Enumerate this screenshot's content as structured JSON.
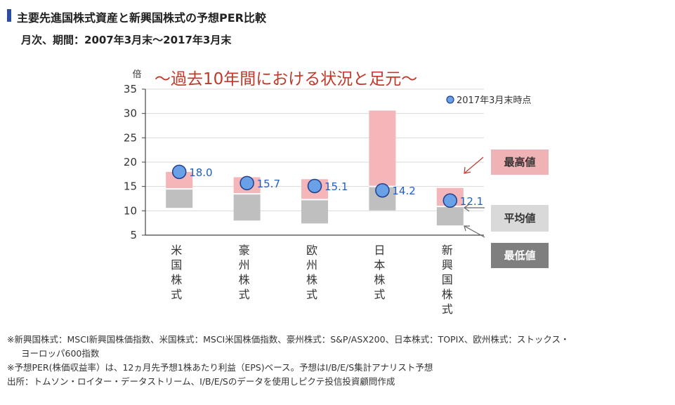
{
  "header": {
    "title": "主要先進国株式資産と新興国株式の予想PER比較",
    "subtitle": "月次、期間：2007年3月末～2017年3月末"
  },
  "colors": {
    "title_bar": "#2b4ea2",
    "high_range": "#f4b6b8",
    "avg_range": "#bfbfbf",
    "marker_fill": "#6aa0e6",
    "marker_stroke": "#1f3f8f",
    "value_label": "#1f5fbf",
    "banner": "#c0392b",
    "axis": "#444444",
    "grid": "#d9d9d9"
  },
  "chart_data": {
    "type": "bar",
    "banner": "～過去10年間における状況と足元～",
    "y_unit": "倍",
    "ylim": [
      5,
      35
    ],
    "yticks": [
      5,
      10,
      15,
      20,
      25,
      30,
      35
    ],
    "grid": true,
    "categories": [
      "米国株式",
      "豪州株式",
      "欧州株式",
      "日本株式",
      "新興国株式"
    ],
    "series": [
      {
        "name": "最高値",
        "values": [
          18.0,
          16.9,
          16.5,
          30.6,
          14.7
        ]
      },
      {
        "name": "平均値",
        "values": [
          14.5,
          13.5,
          12.3,
          15.0,
          10.9
        ]
      },
      {
        "name": "最低値",
        "values": [
          10.6,
          8.0,
          7.4,
          10.1,
          7.0
        ]
      },
      {
        "name": "2017年3月末時点",
        "values": [
          18.0,
          15.7,
          15.1,
          14.2,
          12.1
        ]
      }
    ],
    "value_labels": [
      "18.0",
      "15.7",
      "15.1",
      "14.2",
      "12.1"
    ],
    "point_legend": "2017年3月末時点",
    "legend_labels": {
      "high": "最高値",
      "avg": "平均値",
      "low": "最低値"
    },
    "legend_position": "right"
  },
  "notes": [
    "※新興国株式：MSCI新興国株価指数、米国株式：MSCI米国株価指数、豪州株式：S&P/ASX200、日本株式：TOPIX、欧州株式：ストックス・",
    "ヨーロッパ600指数",
    "※予想PER(株価収益率）は、12ヵ月先予想1株あたり利益（EPS)ベース。予想はI/B/E/S集計アナリスト予想",
    "出所：トムソン・ロイター・データストリーム、I/B/E/Sのデータを使用しピクテ投信投資顧問作成"
  ]
}
